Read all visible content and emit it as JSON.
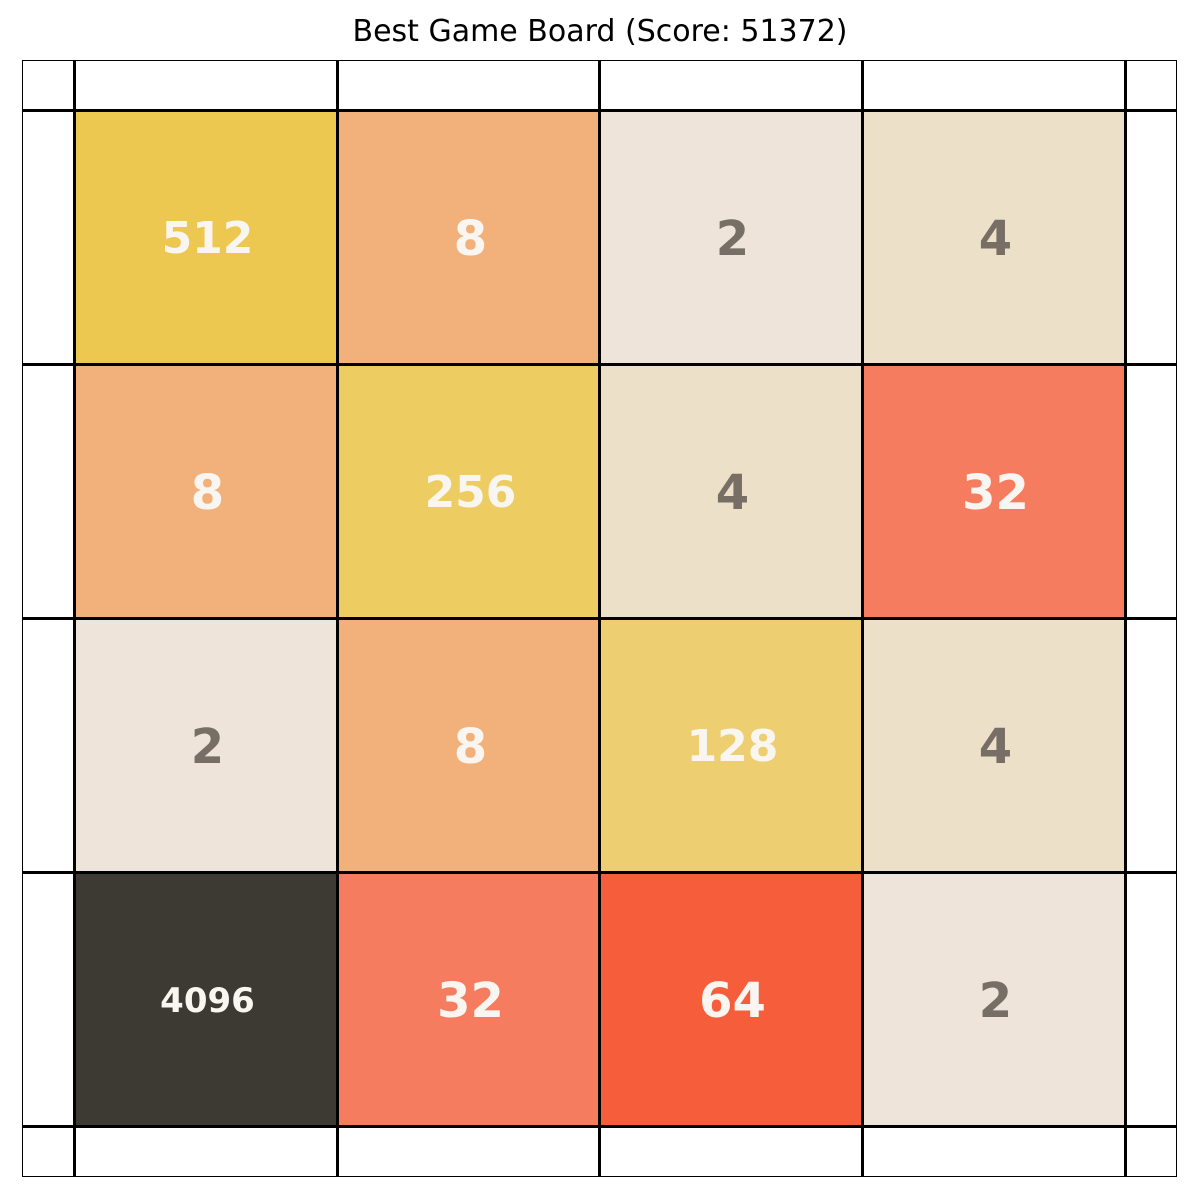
{
  "title": "Best Game Board (Score: 51372)",
  "board": {
    "rows": [
      [
        {
          "value": "512",
          "bg": "#ecc850",
          "fg": "#f9f6f2"
        },
        {
          "value": "8",
          "bg": "#f2b17a",
          "fg": "#f9f6f2"
        },
        {
          "value": "2",
          "bg": "#eee4da",
          "fg": "#776e65"
        },
        {
          "value": "4",
          "bg": "#ede0c8",
          "fg": "#776e65"
        }
      ],
      [
        {
          "value": "8",
          "bg": "#f2b17a",
          "fg": "#f9f6f2"
        },
        {
          "value": "256",
          "bg": "#edcc62",
          "fg": "#f9f6f2"
        },
        {
          "value": "4",
          "bg": "#ede0c8",
          "fg": "#776e65"
        },
        {
          "value": "32",
          "bg": "#f57c5f",
          "fg": "#f9f6f2"
        }
      ],
      [
        {
          "value": "2",
          "bg": "#eee4da",
          "fg": "#776e65"
        },
        {
          "value": "8",
          "bg": "#f2b17a",
          "fg": "#f9f6f2"
        },
        {
          "value": "128",
          "bg": "#edcf72",
          "fg": "#f9f6f2"
        },
        {
          "value": "4",
          "bg": "#ede0c8",
          "fg": "#776e65"
        }
      ],
      [
        {
          "value": "4096",
          "bg": "#3c3a32",
          "fg": "#f9f6f2"
        },
        {
          "value": "32",
          "bg": "#f57c5f",
          "fg": "#f9f6f2"
        },
        {
          "value": "64",
          "bg": "#f65e3b",
          "fg": "#f9f6f2"
        },
        {
          "value": "2",
          "bg": "#eee4da",
          "fg": "#776e65"
        }
      ]
    ]
  }
}
